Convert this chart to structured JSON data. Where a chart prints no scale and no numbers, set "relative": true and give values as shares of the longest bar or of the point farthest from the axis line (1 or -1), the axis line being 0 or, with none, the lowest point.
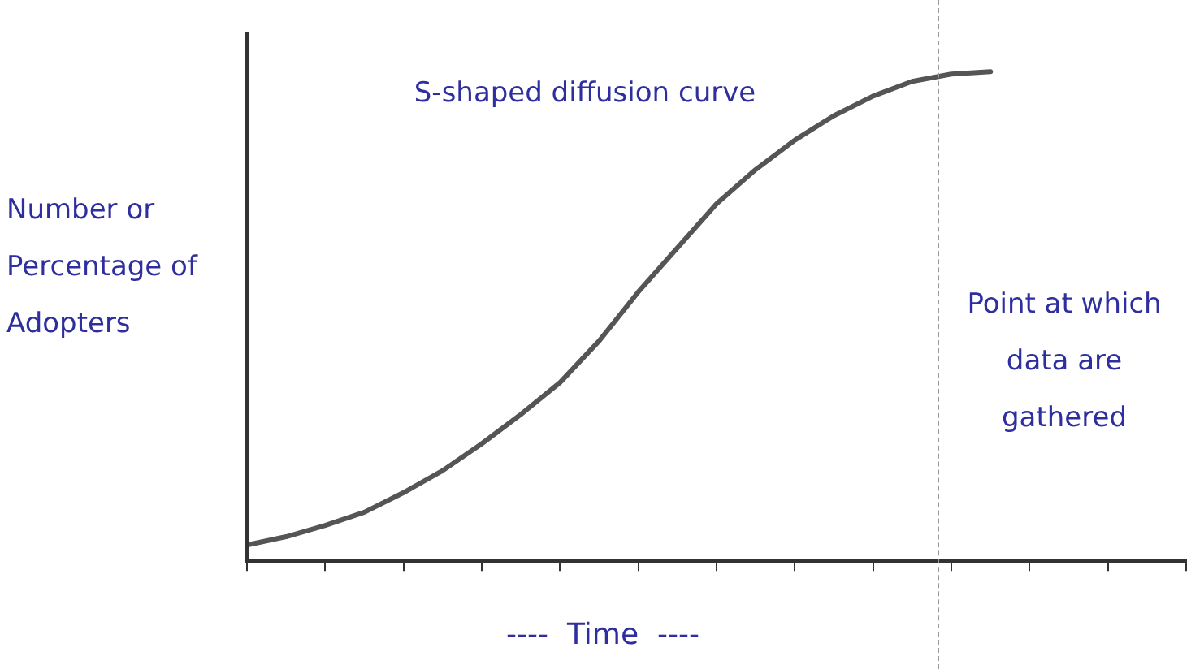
{
  "chart_data": {
    "type": "line",
    "title": "S-shaped diffusion curve",
    "xlabel": "----  Time  ----",
    "ylabel": "Number or Percentage of Adopters",
    "relative": true,
    "categories": [
      null,
      null,
      null,
      null,
      null,
      null,
      null,
      null,
      null,
      null,
      null,
      null,
      null,
      null,
      null,
      null,
      null,
      null,
      null,
      null,
      null,
      null,
      null,
      null,
      null
    ],
    "series": [
      {
        "color": "#555555",
        "values": [
          0.033,
          0.05,
          0.073,
          0.1,
          0.14,
          0.185,
          0.24,
          0.3,
          0.365,
          0.45,
          0.55,
          0.64,
          0.73,
          0.8,
          0.86,
          0.91,
          0.95,
          0.98,
          0.995,
          1,
          null,
          null,
          null,
          null,
          null
        ]
      }
    ],
    "grid": false,
    "legend": false,
    "marker": "none",
    "line_style": "solid",
    "annotations": [
      "Point at which data are gathered"
    ]
  }
}
